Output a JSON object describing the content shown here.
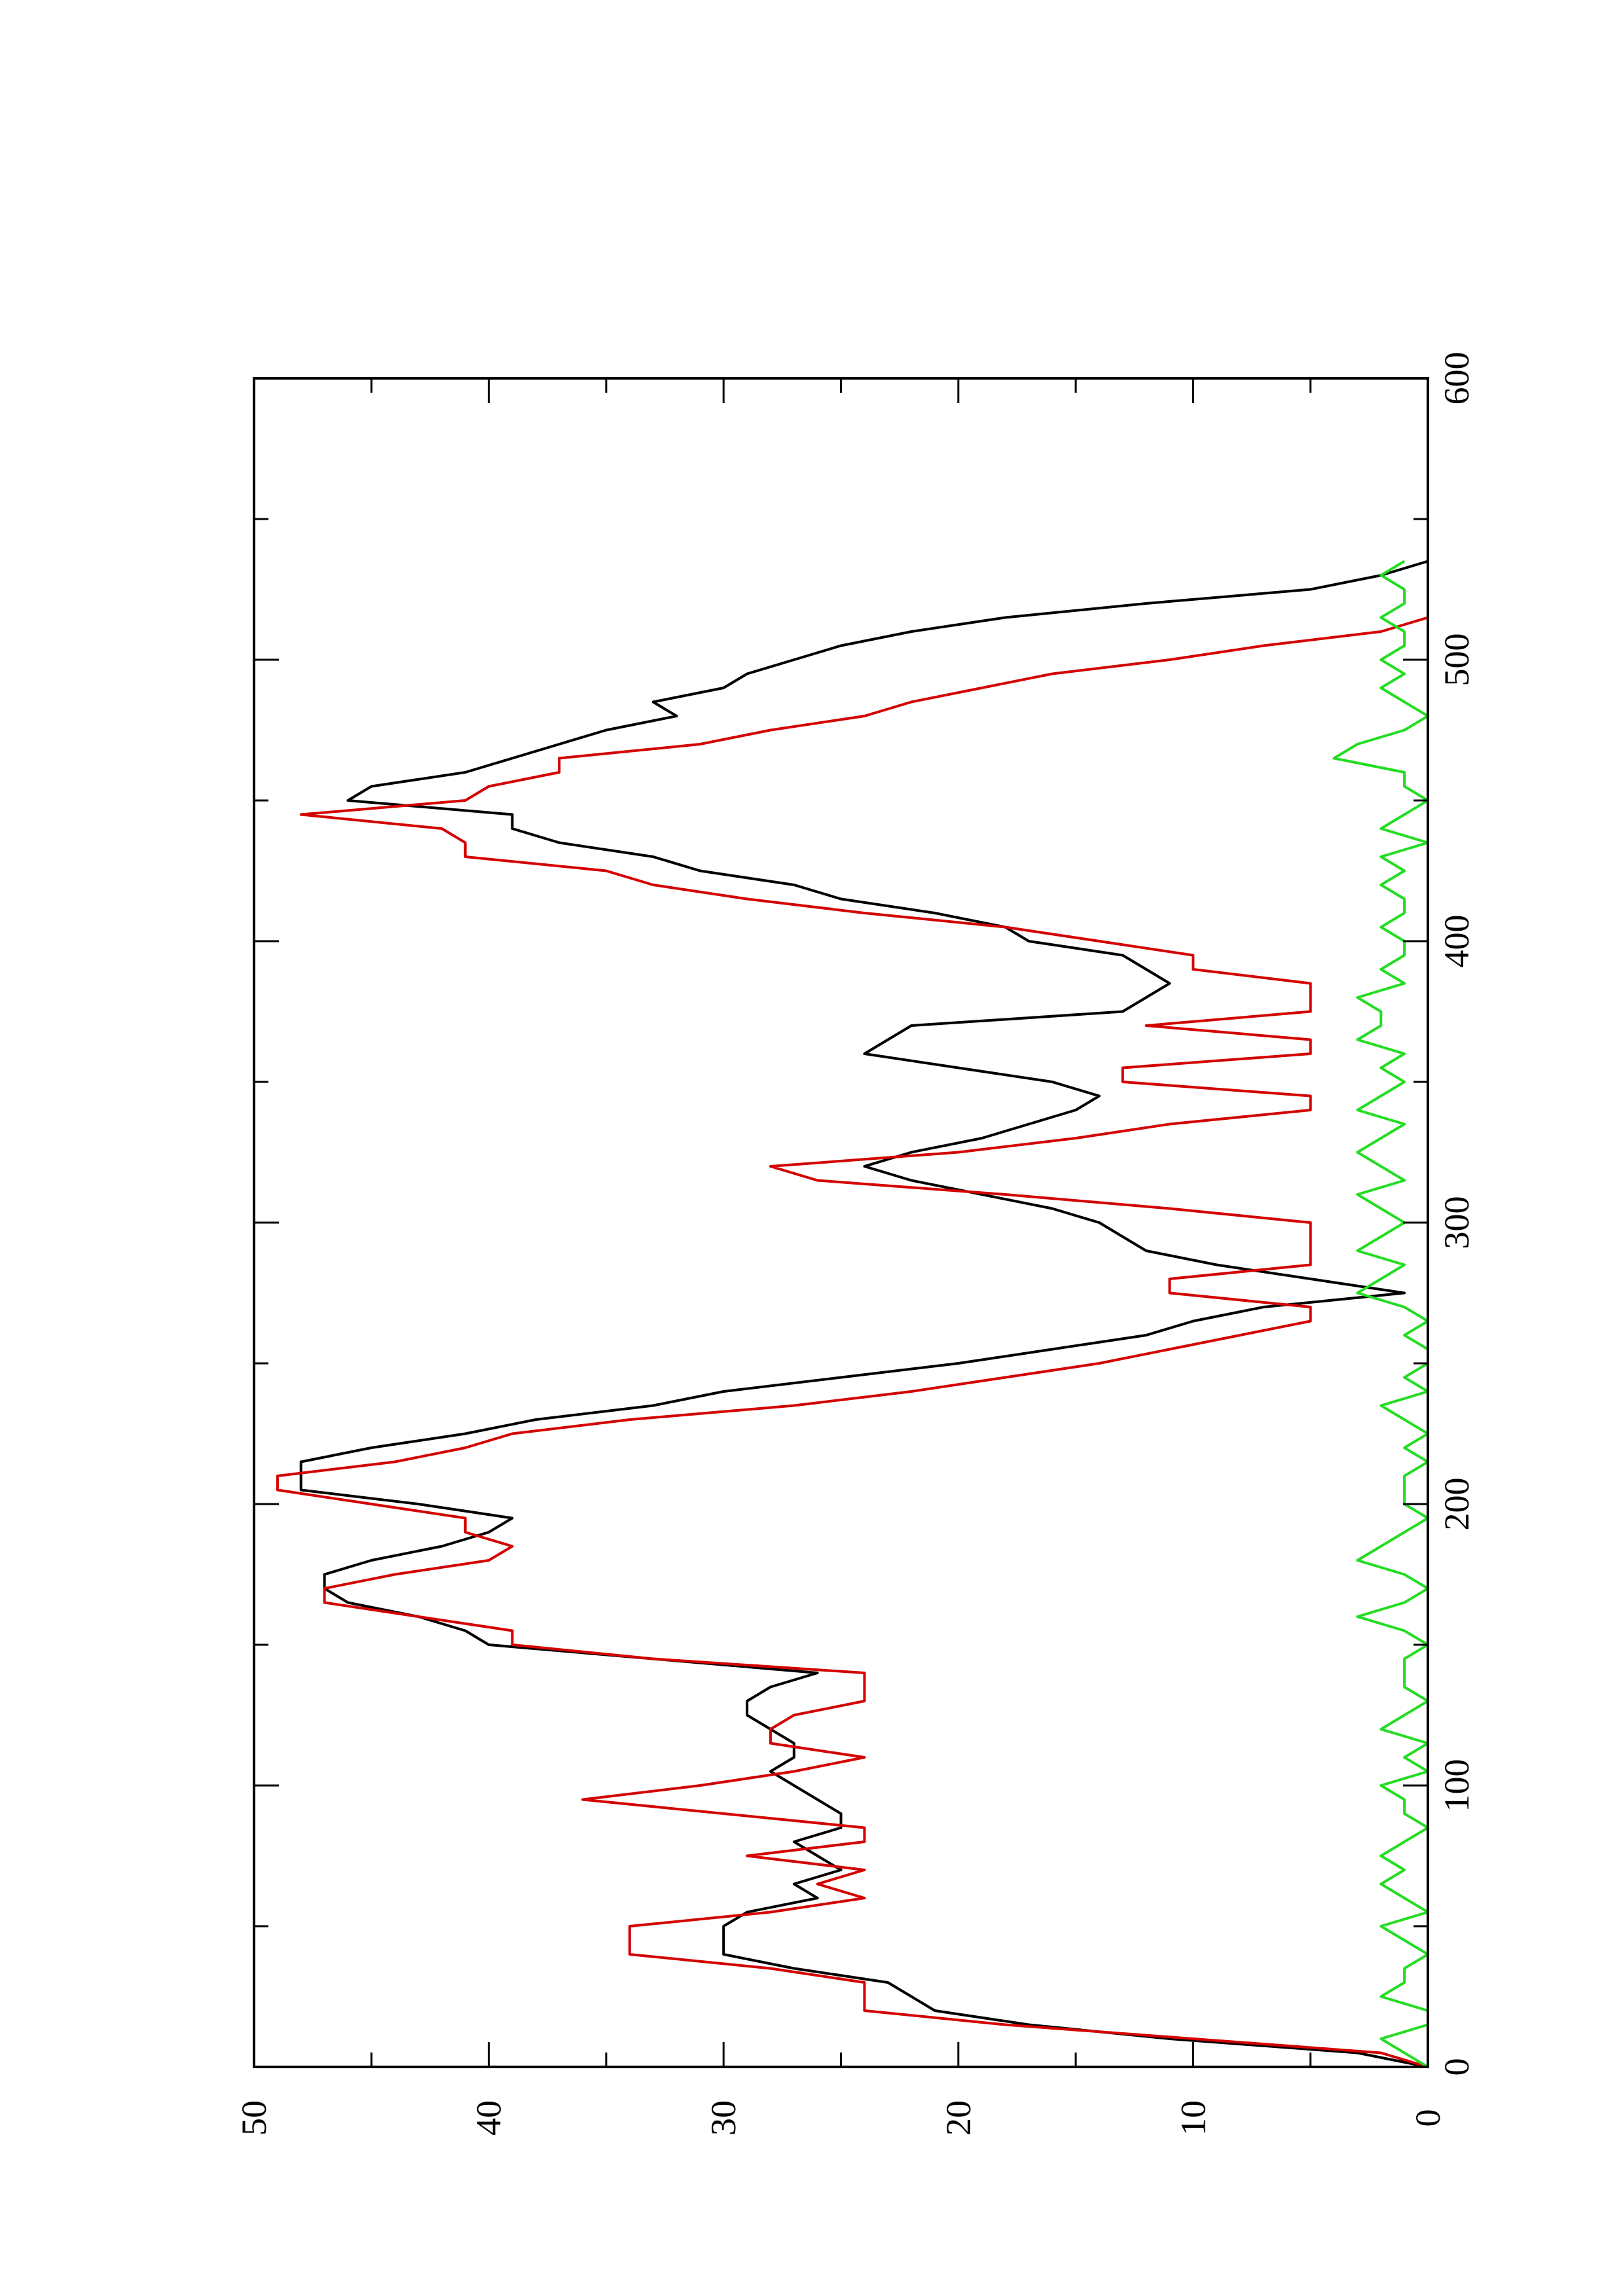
{
  "chart_data": {
    "type": "line",
    "orientation": "rotated-90",
    "title": "",
    "xlabel": "",
    "ylabel": "",
    "xlim": [
      0,
      600
    ],
    "ylim": [
      0,
      50
    ],
    "x_ticks": [
      0,
      100,
      200,
      300,
      400,
      500,
      600
    ],
    "x_tick_labels": [
      "0",
      "100",
      "200",
      "300",
      "400",
      "500",
      "600"
    ],
    "y_ticks": [
      0,
      10,
      20,
      30,
      40,
      50
    ],
    "y_tick_labels": [
      "0",
      "10",
      "20",
      "30",
      "40",
      "50"
    ],
    "grid": false,
    "legend": "none",
    "series": [
      {
        "color": "#000000",
        "x": [
          0,
          5,
          10,
          15,
          20,
          25,
          30,
          35,
          40,
          45,
          50,
          55,
          60,
          65,
          70,
          75,
          80,
          85,
          90,
          95,
          100,
          105,
          110,
          115,
          120,
          125,
          130,
          135,
          140,
          145,
          150,
          155,
          160,
          165,
          170,
          175,
          180,
          185,
          190,
          195,
          200,
          205,
          210,
          215,
          220,
          225,
          230,
          235,
          240,
          245,
          250,
          255,
          260,
          265,
          270,
          275,
          280,
          285,
          290,
          295,
          300,
          305,
          310,
          315,
          320,
          325,
          330,
          335,
          340,
          345,
          350,
          355,
          360,
          365,
          370,
          375,
          380,
          385,
          390,
          395,
          400,
          405,
          410,
          415,
          420,
          425,
          430,
          435,
          440,
          445,
          450,
          455,
          460,
          465,
          470,
          475,
          480,
          485,
          490,
          495,
          500,
          505,
          510,
          515,
          520,
          525,
          530,
          535
        ],
        "values": [
          0,
          3,
          11,
          17,
          21,
          22,
          23,
          27,
          30,
          30,
          30,
          29,
          26,
          27,
          25,
          26,
          27,
          25,
          25,
          26,
          27,
          28,
          27,
          27,
          28,
          29,
          29,
          28,
          26,
          33,
          40,
          41,
          43,
          46,
          47,
          47,
          45,
          42,
          40,
          39,
          43,
          48,
          48,
          48,
          45,
          41,
          38,
          33,
          30,
          25,
          20,
          16,
          12,
          10,
          7,
          1,
          5,
          9,
          12,
          13,
          14,
          16,
          19,
          22,
          24,
          22,
          19,
          17,
          15,
          14,
          16,
          20,
          24,
          23,
          22,
          13,
          12,
          11,
          12,
          13,
          17,
          18,
          21,
          25,
          27,
          31,
          33,
          37,
          39,
          39,
          46,
          45,
          41,
          39,
          37,
          35,
          32,
          33,
          30,
          29,
          27,
          25,
          22,
          18,
          12,
          5,
          2,
          0
        ],
        "label": ""
      },
      {
        "color": "#d40000",
        "x": [
          0,
          5,
          10,
          15,
          20,
          25,
          30,
          35,
          40,
          45,
          50,
          55,
          60,
          65,
          70,
          75,
          80,
          85,
          90,
          95,
          100,
          105,
          110,
          115,
          120,
          125,
          130,
          135,
          140,
          145,
          150,
          155,
          160,
          165,
          170,
          175,
          180,
          185,
          190,
          195,
          200,
          205,
          210,
          215,
          220,
          225,
          230,
          235,
          240,
          245,
          250,
          255,
          260,
          265,
          270,
          275,
          280,
          285,
          290,
          295,
          300,
          305,
          310,
          315,
          320,
          325,
          330,
          335,
          340,
          345,
          350,
          355,
          360,
          365,
          370,
          375,
          380,
          385,
          390,
          395,
          400,
          405,
          410,
          415,
          420,
          425,
          430,
          435,
          440,
          445,
          450,
          455,
          460,
          465,
          470,
          475,
          480,
          485,
          490,
          495,
          500,
          505,
          510,
          515,
          520,
          525,
          530,
          535
        ],
        "values": [
          0,
          2,
          10,
          18,
          24,
          24,
          24,
          28,
          34,
          34,
          34,
          28,
          24,
          26,
          24,
          29,
          24,
          24,
          30,
          36,
          31,
          27,
          24,
          28,
          28,
          27,
          24,
          24,
          24,
          33,
          39,
          39,
          43,
          47,
          47,
          44,
          40,
          39,
          41,
          41,
          45,
          49,
          49,
          44,
          41,
          39,
          34,
          27,
          22,
          18,
          14,
          11,
          8,
          5,
          5,
          11,
          11,
          5,
          5,
          5,
          5,
          11,
          18,
          26,
          28,
          20,
          15,
          11,
          5,
          5,
          13,
          13,
          5,
          5,
          12,
          5,
          5,
          5,
          10,
          10,
          14,
          18,
          24,
          29,
          33,
          35,
          41,
          41,
          42,
          48,
          41,
          40,
          37,
          37,
          31,
          28,
          24,
          22,
          19,
          16,
          11,
          7,
          2,
          0,
          0,
          0,
          0,
          0
        ],
        "label": ""
      },
      {
        "color": "#22dd22",
        "x": [
          0,
          5,
          10,
          15,
          20,
          25,
          30,
          35,
          40,
          45,
          50,
          55,
          60,
          65,
          70,
          75,
          80,
          85,
          90,
          95,
          100,
          105,
          110,
          115,
          120,
          125,
          130,
          135,
          140,
          145,
          150,
          155,
          160,
          165,
          170,
          175,
          180,
          185,
          190,
          195,
          200,
          205,
          210,
          215,
          220,
          225,
          230,
          235,
          240,
          245,
          250,
          255,
          260,
          265,
          270,
          275,
          280,
          285,
          290,
          295,
          300,
          305,
          310,
          315,
          320,
          325,
          330,
          335,
          340,
          345,
          350,
          355,
          360,
          365,
          370,
          375,
          380,
          385,
          390,
          395,
          400,
          405,
          410,
          415,
          420,
          425,
          430,
          435,
          440,
          445,
          450,
          455,
          460,
          465,
          470,
          475,
          480,
          485,
          490,
          495,
          500,
          505,
          510,
          515,
          520,
          525,
          530,
          535
        ],
        "values": [
          0,
          1,
          2,
          0,
          0,
          2,
          1,
          1,
          0,
          1,
          2,
          0,
          1,
          2,
          1,
          2,
          1,
          0,
          1,
          1,
          2,
          0,
          1,
          0,
          2,
          1,
          0,
          1,
          1,
          1,
          0,
          1,
          3,
          1,
          0,
          1,
          3,
          2,
          1,
          0,
          1,
          1,
          1,
          0,
          1,
          0,
          1,
          2,
          0,
          1,
          0,
          0,
          1,
          0,
          1,
          3,
          2,
          1,
          3,
          2,
          1,
          2,
          3,
          1,
          2,
          3,
          2,
          1,
          3,
          2,
          1,
          2,
          1,
          3,
          2,
          2,
          3,
          1,
          2,
          1,
          1,
          2,
          1,
          1,
          2,
          1,
          2,
          0,
          2,
          1,
          0,
          1,
          1,
          4,
          3,
          1,
          0,
          1,
          2,
          1,
          2,
          1,
          1,
          2,
          1,
          1,
          2,
          1
        ],
        "label": ""
      }
    ]
  }
}
